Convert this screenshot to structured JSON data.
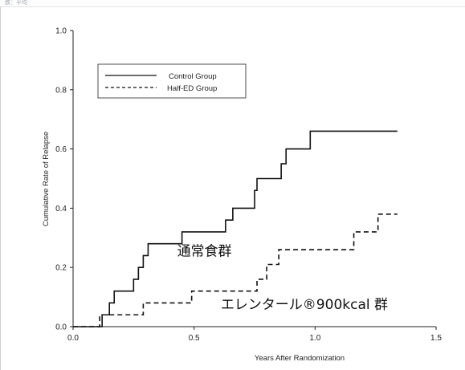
{
  "header": {
    "corner_label": "鉄：平均"
  },
  "chart_data": {
    "type": "line",
    "title": "",
    "xlabel": "Years After Randomization",
    "ylabel": "Cumulative Rate of Relapse",
    "xlim": [
      0,
      1.5
    ],
    "ylim": [
      0,
      1.0
    ],
    "xticks": [
      "0.0",
      "0.5",
      "1.0",
      "1.5"
    ],
    "yticks": [
      "0.0",
      "0.2",
      "0.4",
      "0.6",
      "0.8",
      "1.0"
    ],
    "legend_position": "top-left",
    "grid": false,
    "series": [
      {
        "name": "Control Group",
        "style": "solid",
        "color": "#111111",
        "x": [
          0.0,
          0.12,
          0.15,
          0.17,
          0.25,
          0.27,
          0.29,
          0.31,
          0.45,
          0.63,
          0.66,
          0.75,
          0.76,
          0.86,
          0.88,
          0.98,
          1.34
        ],
        "y": [
          0.0,
          0.04,
          0.08,
          0.12,
          0.16,
          0.2,
          0.24,
          0.28,
          0.32,
          0.36,
          0.4,
          0.46,
          0.5,
          0.55,
          0.6,
          0.66,
          0.66
        ]
      },
      {
        "name": "Half-ED Group",
        "style": "dashed",
        "color": "#111111",
        "x": [
          0.0,
          0.11,
          0.29,
          0.49,
          0.76,
          0.8,
          0.85,
          0.91,
          1.16,
          1.26,
          1.34
        ],
        "y": [
          0.0,
          0.04,
          0.08,
          0.12,
          0.16,
          0.21,
          0.26,
          0.26,
          0.32,
          0.38,
          0.38
        ]
      }
    ],
    "annotations": [
      {
        "text": "通常食群",
        "x": 0.43,
        "y": 0.24
      },
      {
        "text": "エレンタール®900kcal 群",
        "x": 0.61,
        "y": 0.06
      }
    ]
  }
}
